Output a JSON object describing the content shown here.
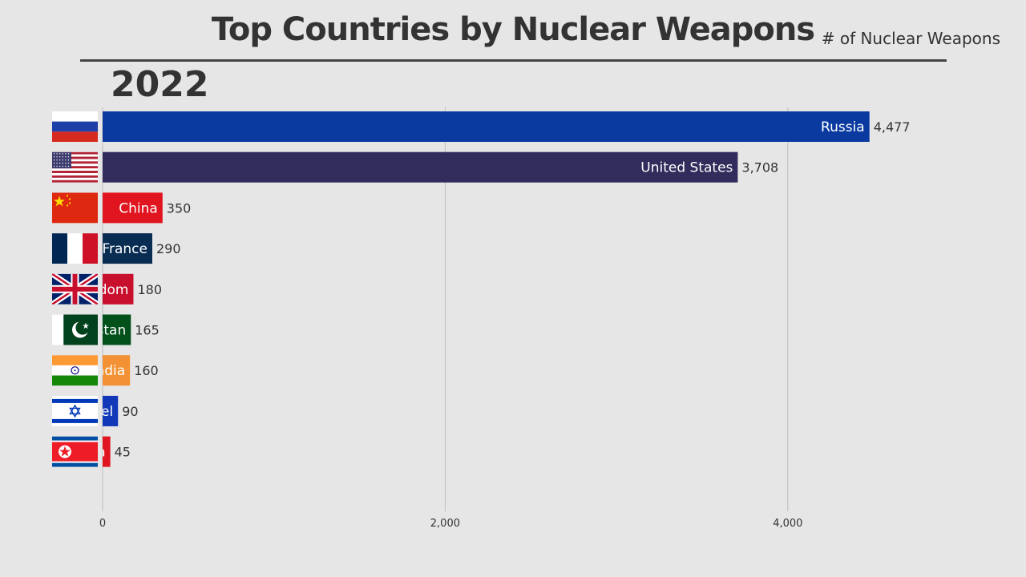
{
  "header": {
    "title": "Top Countries by Nuclear Weapons",
    "subtitle": "# of Nuclear Weapons",
    "year": "2022"
  },
  "chart_data": {
    "type": "bar",
    "orientation": "horizontal",
    "title": "Top Countries by Nuclear Weapons",
    "xlabel": "",
    "ylabel": "",
    "xlim": [
      0,
      5000
    ],
    "x_ticks": [
      0,
      2000,
      4000
    ],
    "x_tick_labels": [
      "0",
      "2,000",
      "4,000"
    ],
    "grid": true,
    "categories": [
      "Russia",
      "United States",
      "China",
      "France",
      "dom",
      "stan",
      "ndia",
      "el",
      "a"
    ],
    "values": [
      4477,
      3708,
      350,
      290,
      180,
      165,
      160,
      90,
      45
    ],
    "value_labels": [
      "4,477",
      "3,708",
      "350",
      "290",
      "180",
      "165",
      "160",
      "90",
      "45"
    ],
    "colors": [
      "#0a3aa0",
      "#322c5c",
      "#e0151f",
      "#082c52",
      "#c8102e",
      "#02501a",
      "#f39234",
      "#1038b8",
      "#e0151f"
    ],
    "flags": [
      "russia-flag-icon",
      "usa-flag-icon",
      "china-flag-icon",
      "france-flag-icon",
      "uk-flag-icon",
      "pakistan-flag-icon",
      "india-flag-icon",
      "israel-flag-icon",
      "north-korea-flag-icon"
    ]
  }
}
